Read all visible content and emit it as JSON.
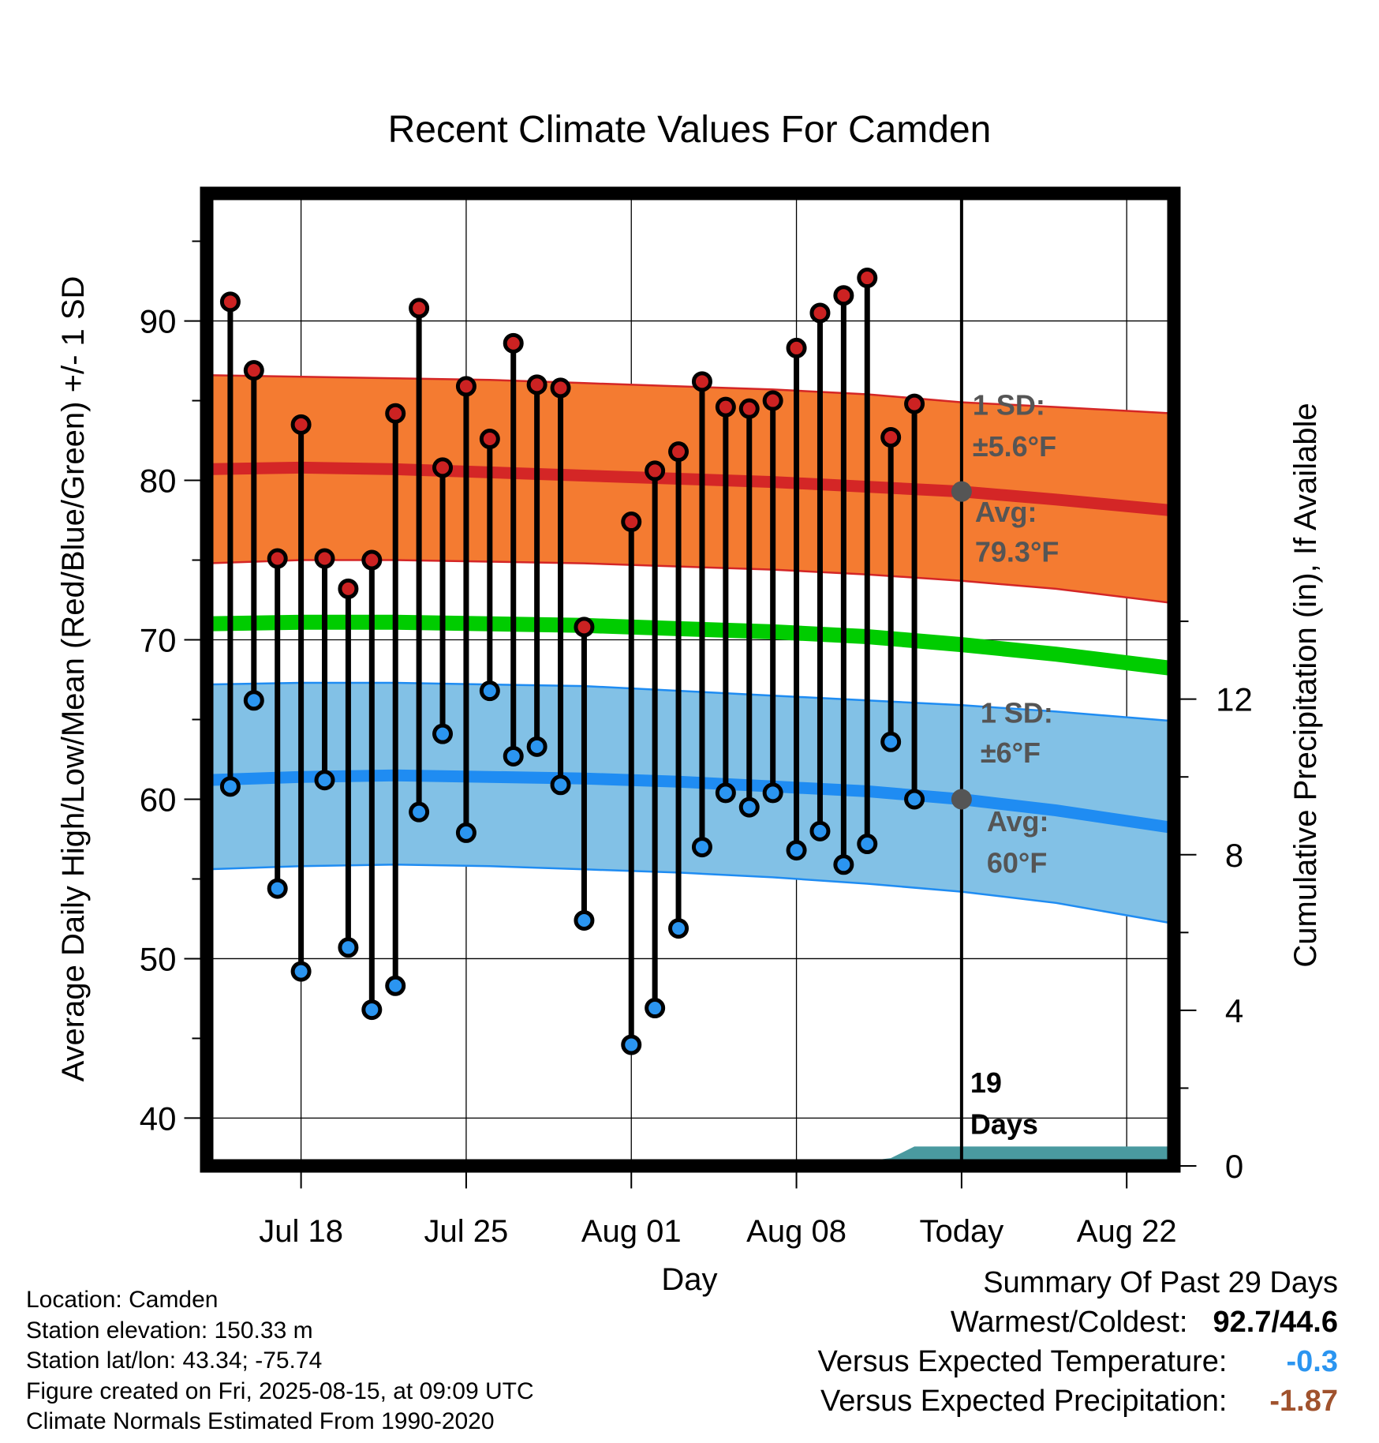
{
  "chart_data": {
    "type": "line",
    "title": "Recent Climate Values For Camden",
    "xlabel": "Day",
    "ylabel": "Average Daily High/Low/Mean (Red/Blue/Green) +/- 1 SD",
    "y2label": "Cumulative Precipitation (in), If Available",
    "ylim": [
      37,
      98
    ],
    "y2lim": [
      0,
      25
    ],
    "yticks": [
      40,
      50,
      60,
      70,
      80,
      90
    ],
    "y2ticks": [
      0,
      4,
      8,
      12
    ],
    "xlim": [
      "2025-07-14",
      "2025-08-24"
    ],
    "xtick_dates": [
      "2025-07-18",
      "2025-07-25",
      "2025-08-01",
      "2025-08-08",
      "2025-08-15",
      "2025-08-22"
    ],
    "xtick_labels": [
      "Jul 18",
      "Jul 25",
      "Aug 01",
      "Aug 08",
      "Today",
      "Aug 22"
    ],
    "today": "2025-08-15",
    "grid": true,
    "daily": {
      "dates": [
        "2025-07-15",
        "2025-07-16",
        "2025-07-17",
        "2025-07-18",
        "2025-07-19",
        "2025-07-20",
        "2025-07-21",
        "2025-07-22",
        "2025-07-23",
        "2025-07-24",
        "2025-07-25",
        "2025-07-26",
        "2025-07-27",
        "2025-07-28",
        "2025-07-29",
        "2025-07-30",
        "2025-07-31",
        "2025-08-01",
        "2025-08-02",
        "2025-08-03",
        "2025-08-04",
        "2025-08-05",
        "2025-08-06",
        "2025-08-07",
        "2025-08-08",
        "2025-08-09",
        "2025-08-10",
        "2025-08-11",
        "2025-08-12",
        "2025-08-13",
        "2025-08-14"
      ],
      "high": [
        91.2,
        86.9,
        75.1,
        83.5,
        75.1,
        73.2,
        75.0,
        84.2,
        90.8,
        80.8,
        85.9,
        82.6,
        88.6,
        86.0,
        85.8,
        70.8,
        null,
        77.4,
        80.6,
        81.8,
        86.2,
        84.6,
        84.5,
        85.0,
        88.3,
        90.5,
        91.6,
        92.7,
        82.7,
        84.8,
        null
      ],
      "low": [
        60.8,
        66.2,
        54.4,
        49.2,
        61.2,
        50.7,
        46.8,
        48.3,
        59.2,
        64.1,
        57.9,
        66.8,
        62.7,
        63.3,
        60.9,
        52.4,
        null,
        44.6,
        46.9,
        51.9,
        57.0,
        60.4,
        59.5,
        60.4,
        56.8,
        58.0,
        55.9,
        57.2,
        63.6,
        60.0,
        null
      ]
    },
    "normals": {
      "dates": [
        "2025-07-14",
        "2025-07-18",
        "2025-07-22",
        "2025-07-26",
        "2025-07-30",
        "2025-08-03",
        "2025-08-07",
        "2025-08-11",
        "2025-08-15",
        "2025-08-19",
        "2025-08-24"
      ],
      "high_upper": [
        86.6,
        86.5,
        86.4,
        86.3,
        86.1,
        85.9,
        85.7,
        85.4,
        84.9,
        84.6,
        84.2
      ],
      "high_mean": [
        80.7,
        80.8,
        80.7,
        80.5,
        80.3,
        80.1,
        79.9,
        79.6,
        79.3,
        78.8,
        78.1
      ],
      "high_lower": [
        74.8,
        75.0,
        75.0,
        74.9,
        74.8,
        74.6,
        74.4,
        74.1,
        73.7,
        73.2,
        72.3
      ],
      "mean": [
        71.0,
        71.1,
        71.1,
        71.0,
        70.9,
        70.7,
        70.5,
        70.2,
        69.7,
        69.1,
        68.2
      ],
      "low_upper": [
        67.2,
        67.3,
        67.3,
        67.2,
        67.1,
        66.8,
        66.5,
        66.2,
        65.9,
        65.5,
        64.9
      ],
      "low_mean": [
        61.2,
        61.4,
        61.5,
        61.4,
        61.3,
        61.1,
        60.8,
        60.5,
        60.0,
        59.3,
        58.2
      ],
      "low_lower": [
        55.6,
        55.8,
        55.9,
        55.8,
        55.6,
        55.4,
        55.1,
        54.7,
        54.2,
        53.5,
        52.2
      ]
    },
    "precip": {
      "dates": [
        "2025-07-14",
        "2025-07-19",
        "2025-08-10",
        "2025-08-12",
        "2025-08-13",
        "2025-08-24"
      ],
      "cumulative": [
        0.0,
        0.05,
        0.05,
        0.2,
        0.5,
        0.5
      ]
    },
    "annotations": {
      "high_sd_label": "1 SD:",
      "high_sd_value": "±5.6°F",
      "high_avg_label": "Avg:",
      "high_avg_value": "79.3°F",
      "low_sd_label": "1 SD:",
      "low_sd_value": "±6°F",
      "low_avg_label": "Avg:",
      "low_avg_value": "60°F",
      "days_number": "19",
      "days_label": "Days"
    },
    "colors": {
      "high_band": "#f47b31",
      "high_line": "#d42626",
      "mean_line": "#00cc00",
      "low_band": "#82c1e6",
      "low_line": "#1f8cf2",
      "high_marker": "#cc2222",
      "low_marker": "#2b95f0",
      "precip_fill": "#4a9aa0",
      "annotation_text": "#555555"
    }
  },
  "footer": {
    "location": "Location: Camden",
    "elevation": "Station elevation: 150.33 m",
    "latlon": "Station lat/lon: 43.34; -75.74",
    "created": "Figure created on Fri, 2025-08-15, at 09:09 UTC",
    "normals": "Climate Normals Estimated From 1990-2020"
  },
  "summary": {
    "title": "Summary Of Past 29 Days",
    "warm_cold_label": "Warmest/Coldest:",
    "warm_cold_value": "92.7/44.6",
    "temp_label": "Versus Expected Temperature:",
    "temp_value": "-0.3",
    "temp_color": "#2b95f0",
    "precip_label": "Versus Expected Precipitation:",
    "precip_value": "-1.87",
    "precip_color": "#a0522d"
  }
}
